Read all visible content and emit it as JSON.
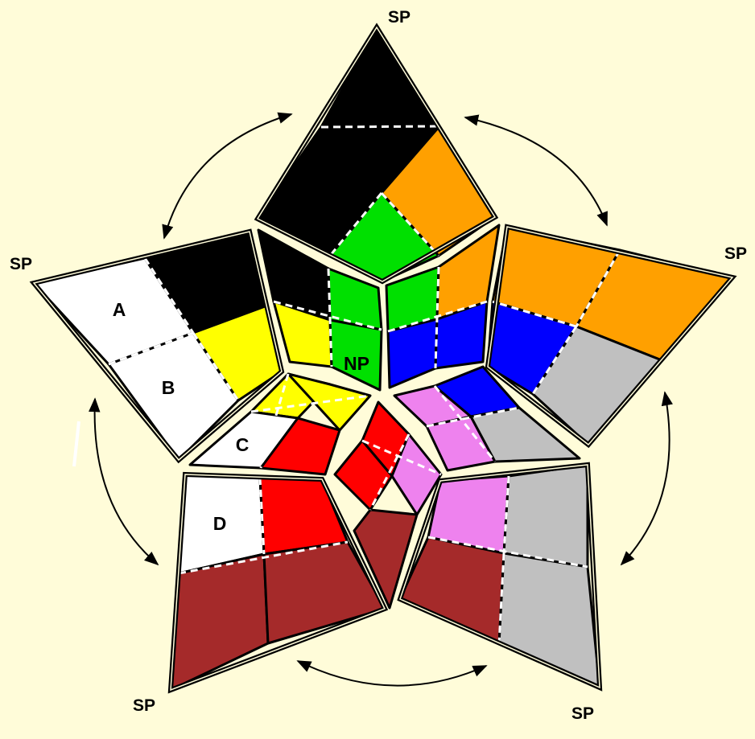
{
  "colors": {
    "background": "#fffcd9",
    "black": "#000000",
    "white": "#ffffff",
    "orange": "#ffa000",
    "green": "#00e000",
    "yellow": "#ffff00",
    "blue": "#0000ff",
    "gray": "#c0c0c0",
    "red": "#ff0000",
    "violet": "#ee82ee",
    "brown": "#a52a2a"
  },
  "labels": {
    "sp": "SP",
    "np": "NP",
    "a": "A",
    "b": "B",
    "c": "C",
    "d": "D"
  },
  "diagram": {
    "kind": "pentagonal star net of a puzzle",
    "star_points": 5,
    "outer_tiles_per_point": 4,
    "rotation_arrows": 5
  }
}
